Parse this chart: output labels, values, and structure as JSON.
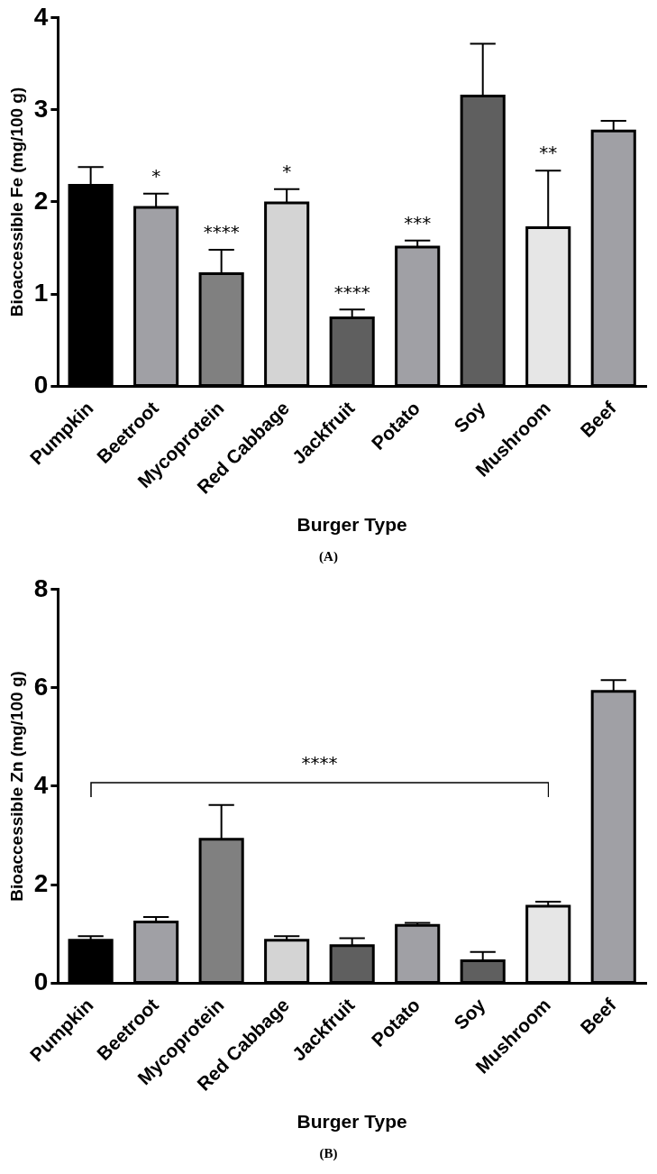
{
  "chart_data": [
    {
      "type": "bar",
      "xlabel": "Burger Type",
      "ylabel": "Bioaccessible Fe (mg/100 g)",
      "categories": [
        "Pumpkin",
        "Beetroot",
        "Mycoprotein",
        "Red Cabbage",
        "Jackfruit",
        "Potato",
        "Soy",
        "Mushroom",
        "Beef"
      ],
      "values": [
        2.18,
        1.94,
        1.22,
        1.99,
        0.74,
        1.51,
        3.15,
        1.72,
        2.77
      ],
      "errors": [
        0.2,
        0.15,
        0.26,
        0.15,
        0.09,
        0.07,
        0.57,
        0.62,
        0.11
      ],
      "colors": [
        "#000000",
        "#a0a0a5",
        "#808080",
        "#d4d4d4",
        "#5f5f5f",
        "#a0a0a5",
        "#5f5f5f",
        "#e6e6e6",
        "#a0a0a5"
      ],
      "ylim": [
        0,
        4
      ],
      "yticks": [
        0,
        1,
        2,
        3,
        4
      ],
      "grid": false,
      "legend": false,
      "annotations": [
        {
          "text": "*",
          "x": "Beetroot",
          "y": 1.94
        },
        {
          "text": "****",
          "x": "Mycoprotein",
          "y": 1.22
        },
        {
          "text": "*",
          "x": "Red Cabbage",
          "y": 1.99
        },
        {
          "text": "****",
          "x": "Jackfruit",
          "y": 0.74
        },
        {
          "text": "***",
          "x": "Potato",
          "y": 1.51
        },
        {
          "text": "**",
          "x": "Mushroom",
          "y": 2.34
        },
        "(A)"
      ]
    },
    {
      "type": "bar",
      "xlabel": "Burger Type",
      "ylabel": "Bioaccessible Zn (mg/100 g)",
      "categories": [
        "Pumpkin",
        "Beetroot",
        "Mycoprotein",
        "Red Cabbage",
        "Jackfruit",
        "Potato",
        "Soy",
        "Mushroom",
        "Beef"
      ],
      "values": [
        0.87,
        1.24,
        2.92,
        0.87,
        0.76,
        1.17,
        0.45,
        1.56,
        5.93
      ],
      "errors": [
        0.08,
        0.1,
        0.7,
        0.08,
        0.15,
        0.05,
        0.18,
        0.09,
        0.23
      ],
      "colors": [
        "#000000",
        "#a0a0a5",
        "#808080",
        "#d4d4d4",
        "#5f5f5f",
        "#a0a0a5",
        "#5f5f5f",
        "#e6e6e6",
        "#a0a0a5"
      ],
      "ylim": [
        0,
        8
      ],
      "yticks": [
        0,
        2,
        4,
        6,
        8
      ],
      "grid": false,
      "legend": false,
      "annotations": [
        "****",
        "(B)"
      ]
    }
  ]
}
